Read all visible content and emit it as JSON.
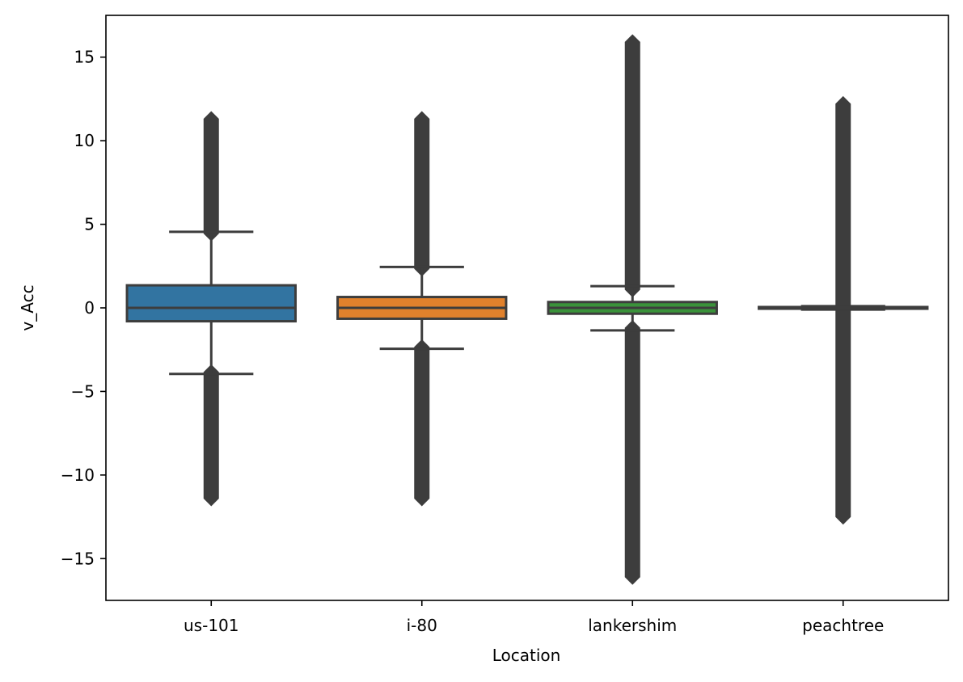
{
  "chart_data": {
    "type": "box",
    "xlabel": "Location",
    "ylabel": "v_Acc",
    "ylim": [
      -17.5,
      17.5
    ],
    "yticks": [
      15,
      10,
      5,
      0,
      -5,
      -10,
      -15
    ],
    "ytick_labels": [
      "15",
      "10",
      "5",
      "0",
      "−5",
      "−10",
      "−15"
    ],
    "categories": [
      "us-101",
      "i-80",
      "lankershim",
      "peachtree"
    ],
    "colors": [
      "#3274a1",
      "#e1812c",
      "#3a923a",
      "#c03d3e"
    ],
    "line_color": "#3d3d3d",
    "grid": false,
    "boxes": [
      {
        "q1": -0.8,
        "median": 0.0,
        "q3": 1.35,
        "whisker_low": -3.95,
        "whisker_high": 4.55,
        "outlier_low": [
          -11.4,
          -3.85
        ],
        "outlier_high": [
          4.45,
          11.3
        ]
      },
      {
        "q1": -0.65,
        "median": 0.0,
        "q3": 0.65,
        "whisker_low": -2.45,
        "whisker_high": 2.45,
        "outlier_low": [
          -11.4,
          -2.35
        ],
        "outlier_high": [
          2.35,
          11.3
        ]
      },
      {
        "q1": -0.35,
        "median": 0.0,
        "q3": 0.35,
        "whisker_low": -1.35,
        "whisker_high": 1.3,
        "outlier_low": [
          -16.1,
          -1.2
        ],
        "outlier_high": [
          1.1,
          15.9
        ]
      },
      {
        "q1": -0.05,
        "median": 0.0,
        "q3": 0.05,
        "whisker_low": -0.1,
        "whisker_high": 0.1,
        "outlier_low": [
          -12.5,
          -0.1
        ],
        "outlier_high": [
          0.1,
          12.2
        ]
      }
    ]
  }
}
